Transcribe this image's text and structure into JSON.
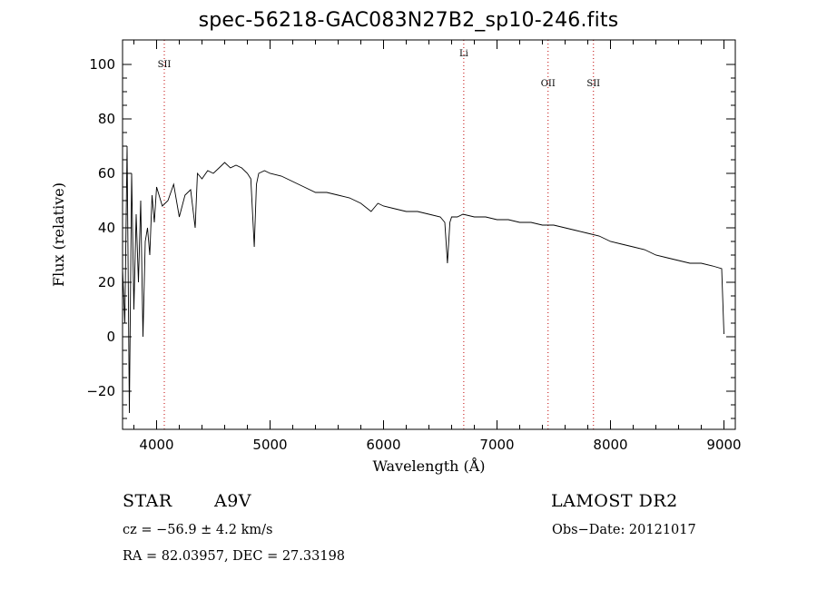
{
  "chart_data": {
    "type": "line",
    "title": "spec-56218-GAC083N27B2_sp10-246.fits",
    "xlabel": "Wavelength (Å)",
    "ylabel": "Flux (relative)",
    "xlim": [
      3700,
      9100
    ],
    "ylim": [
      -34,
      109
    ],
    "x_ticks": [
      4000,
      5000,
      6000,
      7000,
      8000,
      9000
    ],
    "x_tick_labels": [
      "4000",
      "5000",
      "6000",
      "7000",
      "8000",
      "9000"
    ],
    "y_ticks": [
      -20,
      0,
      20,
      40,
      60,
      80,
      100
    ],
    "y_tick_labels": [
      "−20",
      "0",
      "20",
      "40",
      "60",
      "80",
      "100"
    ],
    "grid": false,
    "line_color": "#000000",
    "line_markers": [
      {
        "label": "SII",
        "x": 4068,
        "y_label": 99,
        "color": "#c00000"
      },
      {
        "label": "Li",
        "x": 6707,
        "y_label": 103,
        "color": "#c00000"
      },
      {
        "label": "OII",
        "x": 7450,
        "y_label": 92,
        "color": "#c00000"
      },
      {
        "label": "SII",
        "x": 7850,
        "y_label": 92,
        "color": "#c00000"
      }
    ],
    "series": [
      {
        "x": [
          3700,
          3720,
          3740,
          3760,
          3780,
          3800,
          3820,
          3840,
          3860,
          3880,
          3900,
          3920,
          3940,
          3960,
          3980,
          4000,
          4050,
          4100,
          4150,
          4200,
          4250,
          4300,
          4340,
          4360,
          4400,
          4450,
          4500,
          4550,
          4600,
          4650,
          4700,
          4750,
          4800,
          4830,
          4861,
          4880,
          4900,
          4950,
          5000,
          5100,
          5200,
          5300,
          5400,
          5500,
          5600,
          5700,
          5800,
          5890,
          5950,
          6000,
          6100,
          6200,
          6300,
          6400,
          6500,
          6540,
          6563,
          6585,
          6600,
          6650,
          6700,
          6800,
          6900,
          7000,
          7100,
          7200,
          7300,
          7400,
          7500,
          7600,
          7700,
          7800,
          7900,
          8000,
          8100,
          8200,
          8300,
          8400,
          8500,
          8600,
          8700,
          8800,
          8900,
          8980,
          9000
        ],
        "y": [
          25,
          5,
          70,
          -28,
          60,
          10,
          45,
          20,
          50,
          0,
          35,
          40,
          30,
          52,
          42,
          55,
          48,
          50,
          56,
          44,
          52,
          54,
          40,
          60,
          58,
          61,
          60,
          62,
          64,
          62,
          63,
          62,
          60,
          58,
          33,
          56,
          60,
          61,
          60,
          59,
          57,
          55,
          53,
          53,
          52,
          51,
          49,
          46,
          49,
          48,
          47,
          46,
          46,
          45,
          44,
          42,
          27,
          42,
          44,
          44,
          45,
          44,
          44,
          43,
          43,
          42,
          42,
          41,
          41,
          40,
          39,
          38,
          37,
          35,
          34,
          33,
          32,
          30,
          29,
          28,
          27,
          27,
          26,
          25,
          1
        ]
      }
    ]
  },
  "info": {
    "object_type": "STAR",
    "subclass": "A9V",
    "survey": "LAMOST DR2",
    "cz": "cz = −56.9 ± 4.2 km/s",
    "obs_date": "Obs−Date: 20121017",
    "coords": "RA =  82.03957, DEC =  27.33198"
  }
}
